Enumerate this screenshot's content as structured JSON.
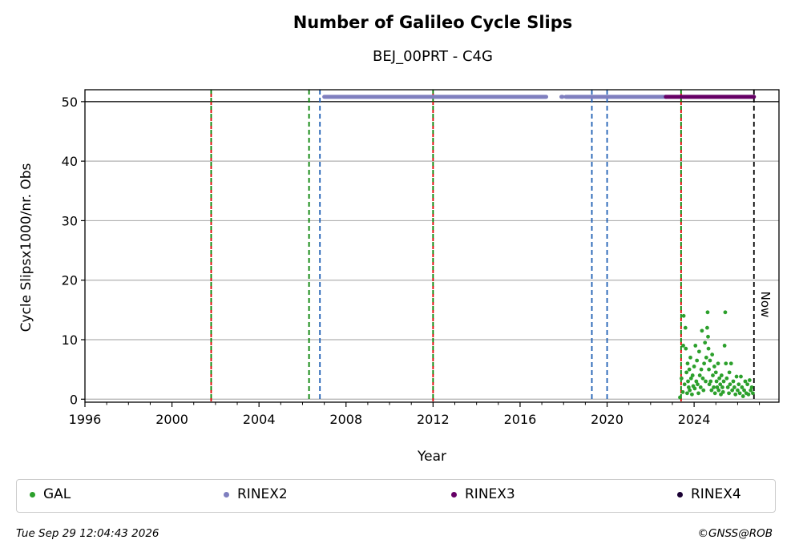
{
  "header": {
    "title": "Number of Galileo Cycle Slips",
    "subtitle": "BEJ_00PRT - C4G"
  },
  "chart_data": {
    "type": "scatter",
    "title": "Number of Galileo Cycle Slips",
    "subtitle": "BEJ_00PRT - C4G",
    "xlabel": "Year",
    "ylabel": "Cycle Slipsx1000/nr. Obs",
    "xlim": [
      1996,
      2027.9
    ],
    "ylim": [
      -0.5,
      52
    ],
    "xticks": [
      1996,
      2000,
      2004,
      2008,
      2012,
      2016,
      2020,
      2024
    ],
    "yticks": [
      0,
      10,
      20,
      30,
      40,
      50
    ],
    "grid": "horizontal",
    "hline_y": 50,
    "vlines": [
      {
        "x": 2001.8,
        "kind": "green-red-dashed",
        "color": "#008000"
      },
      {
        "x": 2006.3,
        "kind": "green-dashed",
        "color": "#008000"
      },
      {
        "x": 2006.8,
        "kind": "blue-dashed",
        "color": "#1f5fb4"
      },
      {
        "x": 2012.0,
        "kind": "green-red-dashed",
        "color": "#008000"
      },
      {
        "x": 2019.3,
        "kind": "blue-dashed",
        "color": "#1f5fb4"
      },
      {
        "x": 2020.0,
        "kind": "blue-dashed",
        "color": "#1f5fb4"
      },
      {
        "x": 2023.4,
        "kind": "green-red-dashed",
        "color": "#008000"
      },
      {
        "x": 2026.75,
        "kind": "black-dashed",
        "color": "#000000"
      }
    ],
    "now_label": "Now",
    "now_x": 2026.75,
    "rinex_bars": [
      {
        "series": "RINEX2",
        "y": 50.8,
        "segments": [
          [
            2007.0,
            2017.2
          ],
          [
            2017.9,
            2017.95
          ],
          [
            2018.1,
            2022.7
          ]
        ],
        "color": "#7f7fbf"
      },
      {
        "series": "RINEX3",
        "y": 50.8,
        "segments": [
          [
            2022.7,
            2026.75
          ]
        ],
        "color": "#660066"
      }
    ],
    "series": [
      {
        "name": "GAL",
        "color": "#2ca02c",
        "x": [
          2023.35,
          2023.42,
          2023.48,
          2023.5,
          2023.52,
          2023.56,
          2023.6,
          2023.62,
          2023.65,
          2023.68,
          2023.7,
          2023.72,
          2023.75,
          2023.78,
          2023.8,
          2023.83,
          2023.86,
          2023.9,
          2023.93,
          2023.96,
          2024.0,
          2024.03,
          2024.06,
          2024.1,
          2024.13,
          2024.16,
          2024.2,
          2024.23,
          2024.26,
          2024.3,
          2024.33,
          2024.36,
          2024.4,
          2024.43,
          2024.46,
          2024.5,
          2024.53,
          2024.56,
          2024.6,
          2024.62,
          2024.64,
          2024.66,
          2024.68,
          2024.7,
          2024.73,
          2024.76,
          2024.8,
          2024.83,
          2024.86,
          2024.9,
          2024.93,
          2024.96,
          2025.0,
          2025.03,
          2025.06,
          2025.1,
          2025.13,
          2025.16,
          2025.2,
          2025.23,
          2025.26,
          2025.3,
          2025.33,
          2025.36,
          2025.4,
          2025.43,
          2025.46,
          2025.5,
          2025.55,
          2025.6,
          2025.62,
          2025.65,
          2025.7,
          2025.75,
          2025.8,
          2025.85,
          2025.9,
          2025.95,
          2026.0,
          2026.05,
          2026.1,
          2026.15,
          2026.2,
          2026.25,
          2026.3,
          2026.35,
          2026.4,
          2026.45,
          2026.5,
          2026.55,
          2026.6,
          2026.65,
          2026.7
        ],
        "y": [
          0.3,
          3.5,
          1.2,
          9.0,
          14.0,
          2.5,
          12.0,
          8.5,
          4.5,
          1.0,
          6.0,
          3.0,
          2.0,
          5.0,
          1.5,
          7.0,
          3.5,
          0.8,
          4.0,
          2.2,
          5.5,
          1.8,
          9.0,
          3.0,
          6.5,
          2.5,
          1.0,
          8.0,
          4.0,
          2.0,
          5.0,
          11.5,
          3.5,
          1.5,
          6.0,
          9.5,
          3.0,
          7.0,
          12.0,
          14.6,
          10.5,
          8.5,
          5.0,
          2.5,
          6.5,
          3.0,
          1.5,
          7.5,
          4.0,
          2.0,
          5.5,
          1.0,
          4.5,
          3.0,
          2.0,
          6.0,
          1.5,
          3.5,
          2.5,
          0.8,
          4.0,
          2.0,
          1.2,
          3.0,
          9.0,
          14.6,
          6.0,
          3.5,
          2.0,
          1.0,
          4.5,
          2.5,
          6.0,
          1.5,
          3.0,
          2.0,
          0.8,
          3.8,
          1.5,
          2.5,
          1.0,
          3.8,
          2.0,
          0.5,
          1.5,
          3.0,
          1.0,
          2.5,
          0.8,
          3.2,
          1.5,
          2.0,
          1.0
        ]
      },
      {
        "name": "RINEX2",
        "color": "#7f7fbf"
      },
      {
        "name": "RINEX3",
        "color": "#660066"
      },
      {
        "name": "RINEX4",
        "color": "#1a0033"
      }
    ]
  },
  "legend": [
    {
      "label": "GAL",
      "color": "#2ca02c"
    },
    {
      "label": "RINEX2",
      "color": "#7f7fbf"
    },
    {
      "label": "RINEX3",
      "color": "#660066"
    },
    {
      "label": "RINEX4",
      "color": "#1a0033"
    }
  ],
  "footer": {
    "timestamp": "Tue Sep 29 12:04:43 2026",
    "credit": "©GNSS@ROB"
  }
}
